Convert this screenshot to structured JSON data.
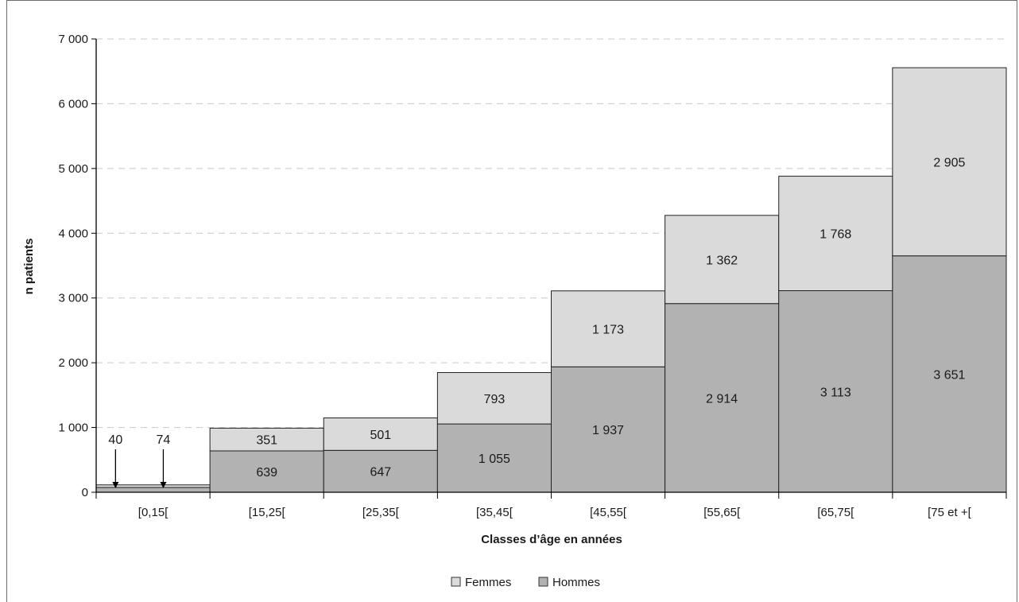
{
  "chart_data": {
    "type": "bar",
    "stacked": true,
    "title": "",
    "xlabel": "Classes d’âge en années",
    "ylabel": "n patients",
    "ylim": [
      0,
      7000
    ],
    "yticks": [
      {
        "value": 0,
        "label": "0"
      },
      {
        "value": 1000,
        "label": "1 000"
      },
      {
        "value": 2000,
        "label": "2 000"
      },
      {
        "value": 3000,
        "label": "3 000"
      },
      {
        "value": 4000,
        "label": "4 000"
      },
      {
        "value": 5000,
        "label": "5 000"
      },
      {
        "value": 6000,
        "label": "6 000"
      },
      {
        "value": 7000,
        "label": "7 000"
      }
    ],
    "grid": true,
    "legend_position": "bottom",
    "categories": [
      "[0,15[",
      "[15,25[",
      "[25,35[",
      "[35,45[",
      "[45,55[",
      "[55,65[",
      "[65,75[",
      "[75 et +["
    ],
    "series": [
      {
        "name": "Hommes",
        "color": "#b2b2b2",
        "values": [
          74,
          639,
          647,
          1055,
          1937,
          2914,
          3113,
          3651
        ],
        "labels": [
          "74",
          "639",
          "647",
          "1 055",
          "1 937",
          "2 914",
          "3 113",
          "3 651"
        ]
      },
      {
        "name": "Femmes",
        "color": "#dadadb",
        "values": [
          40,
          351,
          501,
          793,
          1173,
          1362,
          1768,
          2905
        ],
        "labels": [
          "40",
          "351",
          "501",
          "793",
          "1 173",
          "1 362",
          "1 768",
          "2 905"
        ]
      }
    ],
    "legend": [
      "Femmes",
      "Hommes"
    ]
  }
}
